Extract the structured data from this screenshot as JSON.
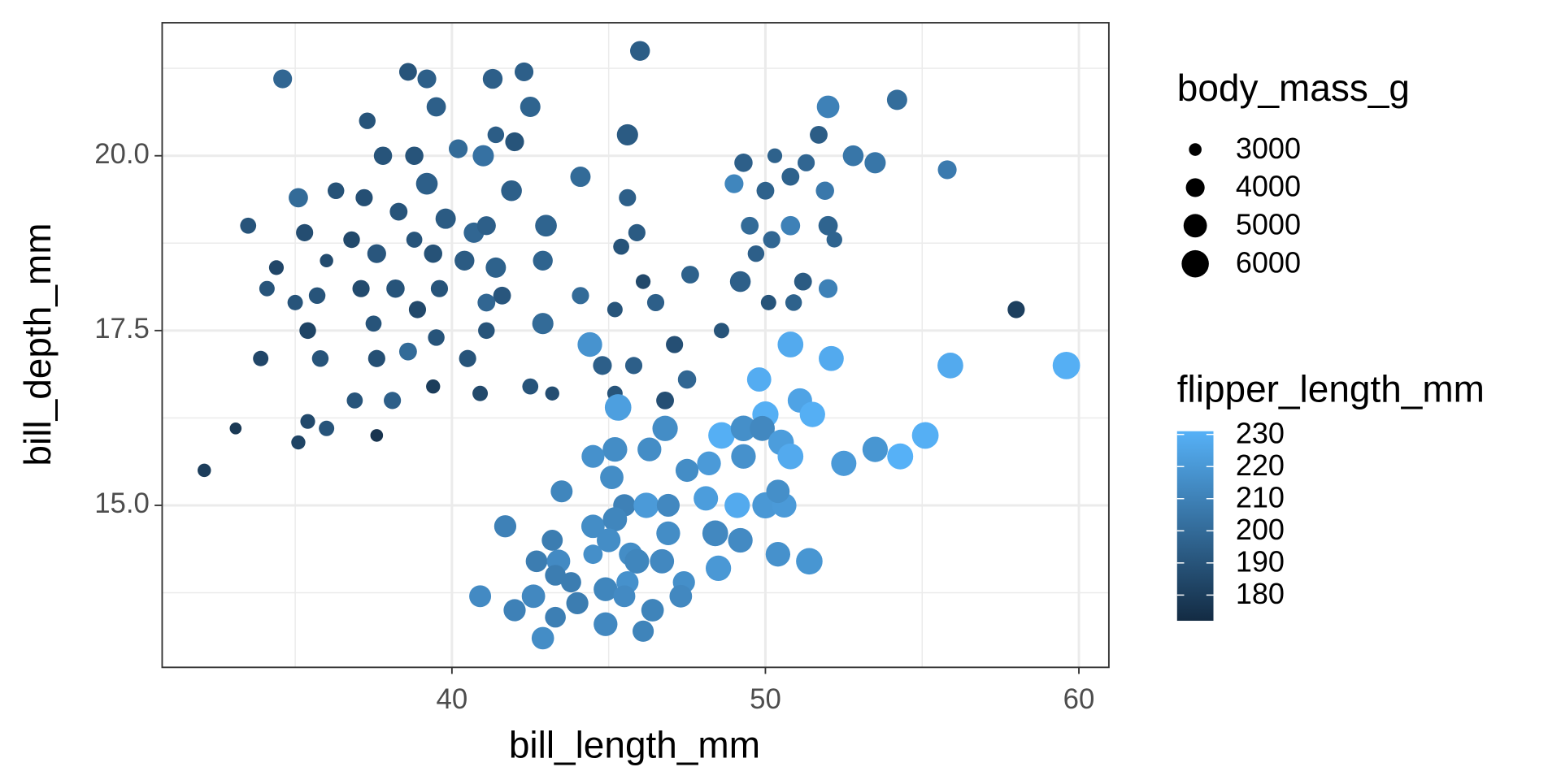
{
  "chart_data": {
    "type": "scatter",
    "x_label": "bill_length_mm",
    "y_label": "bill_depth_mm",
    "xlim": [
      30.74,
      60.94
    ],
    "ylim": [
      12.69,
      21.91
    ],
    "xticks": [
      40,
      50,
      60
    ],
    "yticks": [
      {
        "value": 15,
        "label": "15.0"
      },
      17.5,
      {
        "value": 20,
        "label": "20.0"
      }
    ],
    "grid": true,
    "size_legend": {
      "title": "body_mass_g",
      "values": [
        3000,
        4000,
        5000,
        6000
      ]
    },
    "size_lim": [
      2700,
      6300
    ],
    "color_legend": {
      "title": "flipper_length_mm",
      "ticks": [
        180,
        190,
        200,
        210,
        220,
        230
      ],
      "lim": [
        172,
        231
      ],
      "low": "#132B43",
      "high": "#56B1F7"
    },
    "x": [
      34.6,
      38.6,
      39.2,
      41.3,
      42.3,
      46.0,
      37.3,
      39.5,
      42.5,
      41.4,
      42.0,
      45.6,
      37.8,
      38.8,
      40.2,
      41.0,
      39.2,
      44.1,
      35.1,
      36.3,
      37.2,
      38.3,
      39.8,
      41.9,
      43.0,
      45.6,
      33.5,
      35.3,
      36.8,
      38.8,
      40.7,
      41.1,
      45.9,
      45.4,
      34.4,
      36.0,
      37.6,
      39.4,
      40.4,
      41.4,
      42.9,
      46.1,
      47.6,
      34.1,
      35.7,
      37.1,
      38.2,
      39.6,
      41.6,
      44.1,
      35.0,
      38.9,
      41.1,
      42.9,
      45.2,
      46.5,
      35.4,
      37.5,
      39.5,
      41.1,
      44.4,
      47.1,
      48.6,
      33.9,
      35.8,
      37.6,
      38.6,
      40.5,
      44.8,
      45.8,
      39.4,
      42.5,
      43.2,
      45.2,
      36.9,
      38.1,
      40.9,
      46.8,
      47.5,
      35.4,
      36.0,
      33.1,
      37.6,
      35.1,
      32.1,
      58.0,
      52.0,
      54.2,
      50.3,
      49.3,
      52.8,
      53.5,
      55.8,
      49.0,
      50.8,
      50.0,
      51.9,
      49.5,
      50.8,
      52.0,
      50.2,
      49.7,
      49.2,
      51.2,
      52.0,
      50.1,
      50.9,
      51.7,
      51.3,
      52.2,
      59.6,
      55.9,
      52.1,
      50.8,
      49.8,
      45.3,
      51.1,
      51.5,
      55.1,
      54.3,
      53.5,
      52.5,
      48.6,
      50.0,
      49.3,
      49.9,
      50.5,
      45.2,
      46.3,
      44.5,
      48.2,
      49.3,
      50.8,
      46.8,
      45.1,
      47.5,
      43.5,
      45.5,
      46.2,
      48.1,
      49.1,
      50.0,
      50.6,
      50.4,
      46.9,
      41.7,
      44.5,
      45.2,
      46.9,
      48.4,
      43.2,
      45.0,
      49.2,
      44.5,
      45.7,
      42.7,
      43.4,
      45.9,
      46.7,
      48.5,
      50.4,
      51.4,
      43.3,
      43.8,
      45.6,
      47.4,
      44.9,
      42.6,
      40.9,
      47.3,
      44.0,
      45.5,
      42.0,
      46.4,
      43.3,
      44.9,
      46.1,
      42.9
    ],
    "y": [
      21.1,
      21.2,
      21.1,
      21.1,
      21.2,
      21.5,
      20.5,
      20.7,
      20.7,
      20.3,
      20.2,
      20.3,
      20.0,
      20.0,
      20.1,
      20.0,
      19.6,
      19.7,
      19.4,
      19.5,
      19.4,
      19.2,
      19.1,
      19.5,
      19.0,
      19.4,
      19.0,
      18.9,
      18.8,
      18.8,
      18.9,
      19.0,
      18.9,
      18.7,
      18.4,
      18.5,
      18.6,
      18.6,
      18.5,
      18.4,
      18.5,
      18.2,
      18.3,
      18.1,
      18.0,
      18.1,
      18.1,
      18.1,
      18.0,
      18.0,
      17.9,
      17.8,
      17.9,
      17.6,
      17.8,
      17.9,
      17.5,
      17.6,
      17.4,
      17.5,
      17.3,
      17.3,
      17.5,
      17.1,
      17.1,
      17.1,
      17.2,
      17.1,
      17.0,
      17.0,
      16.7,
      16.7,
      16.6,
      16.6,
      16.5,
      16.5,
      16.6,
      16.5,
      16.8,
      16.2,
      16.1,
      16.1,
      16.0,
      15.9,
      15.5,
      17.8,
      20.7,
      20.8,
      20.0,
      19.9,
      20.0,
      19.9,
      19.8,
      19.6,
      19.7,
      19.5,
      19.5,
      19.0,
      19.0,
      19.0,
      18.8,
      18.6,
      18.2,
      18.2,
      18.1,
      17.9,
      17.9,
      20.3,
      19.9,
      18.8,
      17.0,
      17.0,
      17.1,
      17.3,
      16.8,
      16.4,
      16.5,
      16.3,
      16.0,
      15.7,
      15.8,
      15.6,
      16.0,
      16.3,
      16.1,
      16.1,
      15.9,
      15.8,
      15.8,
      15.7,
      15.6,
      15.7,
      15.7,
      16.1,
      15.4,
      15.5,
      15.2,
      15.0,
      15.0,
      15.1,
      15.0,
      15.0,
      15.0,
      15.2,
      15.0,
      14.7,
      14.7,
      14.8,
      14.6,
      14.6,
      14.5,
      14.5,
      14.5,
      14.3,
      14.3,
      14.2,
      14.2,
      14.2,
      14.2,
      14.1,
      14.3,
      14.2,
      14.0,
      13.9,
      13.9,
      13.9,
      13.8,
      13.7,
      13.7,
      13.7,
      13.6,
      13.7,
      13.5,
      13.5,
      13.4,
      13.3,
      13.2,
      13.1
    ],
    "size": [
      4000,
      3800,
      4000,
      4200,
      4000,
      4200,
      3600,
      4100,
      4300,
      3600,
      4000,
      4500,
      3900,
      3900,
      4000,
      4500,
      4600,
      4300,
      4100,
      3600,
      3700,
      3800,
      4300,
      4400,
      4600,
      3700,
      3500,
      3700,
      3600,
      3500,
      4300,
      4000,
      3700,
      3500,
      3300,
      3100,
      4000,
      3900,
      4200,
      4300,
      4200,
      3300,
      3800,
      3400,
      3600,
      3700,
      3900,
      3700,
      3800,
      3700,
      3400,
      3700,
      3800,
      4500,
      3400,
      3700,
      3600,
      3500,
      3600,
      3600,
      5300,
      3700,
      3400,
      3400,
      3600,
      3700,
      3800,
      3700,
      4000,
      3700,
      3200,
      3500,
      3200,
      3400,
      3500,
      3700,
      3400,
      3800,
      3900,
      3300,
      3400,
      2900,
      3000,
      3200,
      3100,
      3700,
      4800,
      4300,
      3300,
      3900,
      4400,
      4500,
      4000,
      4000,
      3800,
      3800,
      3900,
      3800,
      4100,
      4100,
      3700,
      3600,
      4400,
      3800,
      4000,
      3400,
      3600,
      3800,
      3700,
      3450,
      6050,
      5600,
      5400,
      5600,
      5200,
      5800,
      5250,
      5500,
      5850,
      5650,
      5500,
      5450,
      5800,
      5700,
      5550,
      5400,
      5550,
      5300,
      5100,
      4875,
      5100,
      5300,
      5600,
      5500,
      5000,
      4900,
      4650,
      4750,
      5500,
      5250,
      5500,
      5700,
      5250,
      5000,
      4875,
      4700,
      5000,
      5200,
      5100,
      5600,
      4450,
      5100,
      5300,
      4100,
      5000,
      4600,
      5000,
      5300,
      5200,
      5500,
      5300,
      5800,
      4400,
      4300,
      4700,
      4700,
      5100,
      5000,
      4650,
      4800,
      4700,
      4650,
      4700,
      4800,
      4400,
      5100,
      4500,
      4775
    ],
    "color": [
      198,
      190,
      195,
      195,
      195,
      194,
      190,
      195,
      197,
      194,
      190,
      193,
      190,
      190,
      200,
      203,
      195,
      200,
      200,
      189,
      188,
      190,
      193,
      195,
      197,
      195,
      190,
      187,
      185,
      190,
      198,
      195,
      193,
      190,
      184,
      186,
      191,
      189,
      193,
      196,
      197,
      185,
      196,
      190,
      190,
      186,
      190,
      190,
      191,
      200,
      190,
      185,
      198,
      200,
      190,
      195,
      183,
      190,
      190,
      190,
      218,
      188,
      190,
      184,
      190,
      188,
      200,
      190,
      195,
      195,
      180,
      190,
      187,
      190,
      190,
      195,
      185,
      188,
      198,
      185,
      190,
      178,
      176,
      183,
      180,
      181,
      210,
      201,
      196,
      195,
      205,
      205,
      207,
      212,
      196,
      196,
      206,
      200,
      210,
      197,
      198,
      195,
      195,
      193,
      210,
      190,
      196,
      194,
      198,
      197,
      230,
      228,
      228,
      228,
      229,
      223,
      225,
      230,
      230,
      231,
      219,
      221,
      230,
      230,
      216,
      213,
      222,
      215,
      215,
      217,
      221,
      217,
      228,
      215,
      215,
      215,
      212,
      210,
      221,
      222,
      228,
      220,
      221,
      216,
      213,
      210,
      215,
      212,
      215,
      213,
      208,
      215,
      214,
      216,
      215,
      208,
      214,
      212,
      213,
      220,
      217,
      219,
      208,
      208,
      217,
      216,
      212,
      213,
      214,
      213,
      208,
      214,
      210,
      211,
      209,
      213,
      211,
      215
    ]
  }
}
